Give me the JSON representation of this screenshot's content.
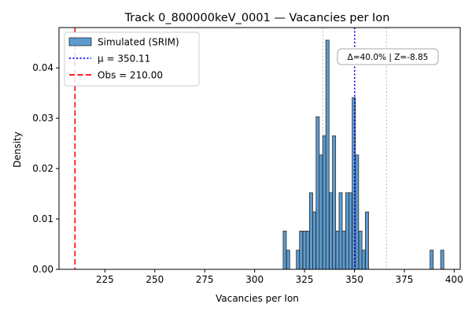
{
  "chart_data": {
    "type": "histogram",
    "title": "Track 0_800000keV_0001 — Vacancies per Ion",
    "xlabel": "Vacancies per Ion",
    "ylabel": "Density",
    "xlim": [
      202,
      403
    ],
    "ylim": [
      0,
      0.048
    ],
    "xticks": [
      225,
      250,
      275,
      300,
      325,
      350,
      375,
      400
    ],
    "yticks": [
      0.0,
      0.01,
      0.02,
      0.03,
      0.04
    ],
    "ytick_labels": [
      "0.00",
      "0.01",
      "0.02",
      "0.03",
      "0.04"
    ],
    "bar_color": "#5b9bd0",
    "bin_width": 1.6,
    "bins": [
      {
        "x": 314.3,
        "density": 0.0076
      },
      {
        "x": 316.0,
        "density": 0.0038
      },
      {
        "x": 320.9,
        "density": 0.0038
      },
      {
        "x": 322.5,
        "density": 0.0076
      },
      {
        "x": 324.2,
        "density": 0.0076
      },
      {
        "x": 325.8,
        "density": 0.0076
      },
      {
        "x": 327.5,
        "density": 0.0152
      },
      {
        "x": 329.1,
        "density": 0.0114
      },
      {
        "x": 330.8,
        "density": 0.0303
      },
      {
        "x": 332.4,
        "density": 0.0227
      },
      {
        "x": 334.1,
        "density": 0.0265
      },
      {
        "x": 335.7,
        "density": 0.0455
      },
      {
        "x": 337.4,
        "density": 0.0152
      },
      {
        "x": 339.0,
        "density": 0.0265
      },
      {
        "x": 340.7,
        "density": 0.0076
      },
      {
        "x": 342.3,
        "density": 0.0152
      },
      {
        "x": 343.9,
        "density": 0.0076
      },
      {
        "x": 345.6,
        "density": 0.0152
      },
      {
        "x": 347.2,
        "density": 0.0152
      },
      {
        "x": 348.9,
        "density": 0.0341
      },
      {
        "x": 350.5,
        "density": 0.0227
      },
      {
        "x": 352.2,
        "density": 0.0076
      },
      {
        "x": 353.8,
        "density": 0.0038
      },
      {
        "x": 355.5,
        "density": 0.0114
      },
      {
        "x": 387.9,
        "density": 0.0038
      },
      {
        "x": 393.2,
        "density": 0.0038
      }
    ],
    "lines": [
      {
        "name": "μ = 350.11",
        "x": 350.11,
        "color": "#0000ff",
        "style": "dotted"
      },
      {
        "name": "Obs = 210.00",
        "x": 210.0,
        "color": "#ff0000",
        "style": "dashed"
      }
    ],
    "reference_lines": [
      {
        "x": 334.2,
        "color": "#c0c0c0",
        "style": "dotted"
      },
      {
        "x": 366.1,
        "color": "#c0c0c0",
        "style": "dotted"
      }
    ],
    "legend": {
      "placement": "top-left",
      "entries": [
        {
          "label": "Simulated (SRIM)",
          "kind": "patch",
          "color": "#5b9bd0"
        },
        {
          "label": "μ = 350.11",
          "kind": "line",
          "color": "#0000ff",
          "style": "dotted"
        },
        {
          "label": "Obs = 210.00",
          "kind": "line",
          "color": "#ff0000",
          "style": "dashed"
        }
      ]
    },
    "annotation": {
      "text": "Δ=40.0% | Z=-8.85",
      "placement": "top-right, near mean line"
    },
    "grid": false
  }
}
